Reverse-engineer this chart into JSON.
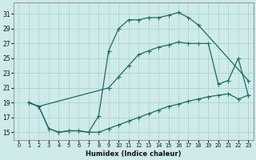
{
  "bg_color": "#ceeaea",
  "line_color": "#1f6b5e",
  "grid_color": "#aed4d4",
  "xlabel": "Humidex (Indice chaleur)",
  "xlim": [
    -0.5,
    23.5
  ],
  "ylim": [
    14,
    32.5
  ],
  "yticks": [
    15,
    17,
    19,
    21,
    23,
    25,
    27,
    29,
    31
  ],
  "xticks": [
    0,
    1,
    2,
    3,
    4,
    5,
    6,
    7,
    8,
    9,
    10,
    11,
    12,
    13,
    14,
    15,
    16,
    17,
    18,
    19,
    20,
    21,
    22,
    23
  ],
  "line1_x": [
    1,
    2,
    3,
    4,
    5,
    6,
    7,
    8,
    9,
    10,
    11,
    12,
    13,
    14,
    15,
    16,
    17,
    18,
    23
  ],
  "line1_y": [
    19.0,
    18.5,
    15.5,
    15.0,
    15.2,
    15.2,
    15.0,
    17.2,
    26.0,
    29.0,
    30.2,
    30.2,
    30.5,
    30.5,
    30.8,
    31.2,
    30.5,
    29.5,
    22.0
  ],
  "line2_x": [
    1,
    2,
    9,
    10,
    11,
    12,
    13,
    14,
    15,
    16,
    17,
    18,
    19,
    20,
    21,
    22,
    23
  ],
  "line2_y": [
    19.0,
    18.5,
    21.0,
    22.5,
    24.0,
    25.5,
    26.0,
    26.5,
    26.8,
    27.2,
    27.0,
    27.0,
    27.0,
    21.5,
    22.0,
    25.0,
    20.0
  ],
  "line3_x": [
    1,
    2,
    3,
    4,
    5,
    6,
    7,
    8,
    9,
    10,
    11,
    12,
    13,
    14,
    15,
    16,
    17,
    18,
    19,
    20,
    21,
    22,
    23
  ],
  "line3_y": [
    19.0,
    18.5,
    15.5,
    15.0,
    15.2,
    15.2,
    15.0,
    15.0,
    15.5,
    16.0,
    16.5,
    17.0,
    17.5,
    18.0,
    18.5,
    18.8,
    19.2,
    19.5,
    19.8,
    20.0,
    20.2,
    19.5,
    20.0
  ]
}
